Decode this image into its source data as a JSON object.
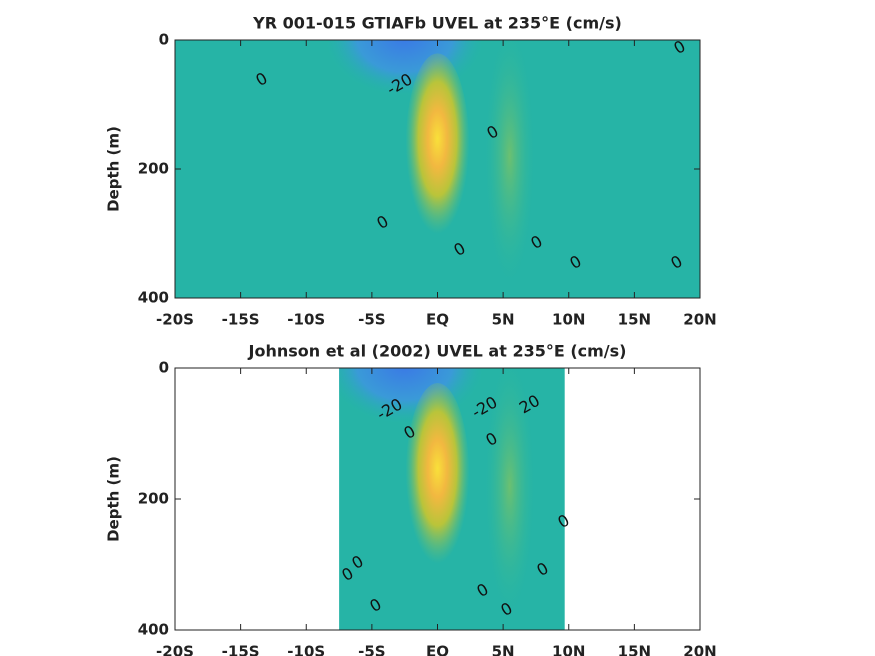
{
  "chart_data": [
    {
      "type": "contour",
      "title": "YR 001-015 GTIAFb UVEL at 235°E (cm/s)",
      "ylabel": "Depth (m)",
      "xlim": [
        -20,
        20
      ],
      "ylim": [
        400,
        0
      ],
      "xticks": [
        {
          "value": -20,
          "label": "-20S"
        },
        {
          "value": -15,
          "label": "-15S"
        },
        {
          "value": -10,
          "label": "-10S"
        },
        {
          "value": -5,
          "label": "-5S"
        },
        {
          "value": 0,
          "label": "EQ"
        },
        {
          "value": 5,
          "label": "5N"
        },
        {
          "value": 10,
          "label": "10N"
        },
        {
          "value": 15,
          "label": "15N"
        },
        {
          "value": 20,
          "label": "20N"
        }
      ],
      "yticks": [
        0,
        200,
        400
      ],
      "contour_labels": [
        "0",
        "-20",
        "0",
        "0",
        "0",
        "0",
        "0",
        "0",
        "0"
      ]
    },
    {
      "type": "contour",
      "title": "Johnson et al (2002) UVEL at 235°E (cm/s)",
      "ylabel": "Depth (m)",
      "xlim": [
        -20,
        20
      ],
      "ylim": [
        400,
        0
      ],
      "xticks": [
        {
          "value": -20,
          "label": "-20S"
        },
        {
          "value": -15,
          "label": "-15S"
        },
        {
          "value": -10,
          "label": "-10S"
        },
        {
          "value": -5,
          "label": "-5S"
        },
        {
          "value": 0,
          "label": "EQ"
        },
        {
          "value": 5,
          "label": "5N"
        },
        {
          "value": 10,
          "label": "10N"
        },
        {
          "value": 15,
          "label": "15N"
        },
        {
          "value": 20,
          "label": "20N"
        }
      ],
      "yticks": [
        0,
        200,
        400
      ],
      "contour_labels": [
        "-20",
        "-20",
        "20",
        "0",
        "0",
        "0",
        "0",
        "0",
        "0",
        "0",
        "0",
        "0"
      ]
    }
  ]
}
